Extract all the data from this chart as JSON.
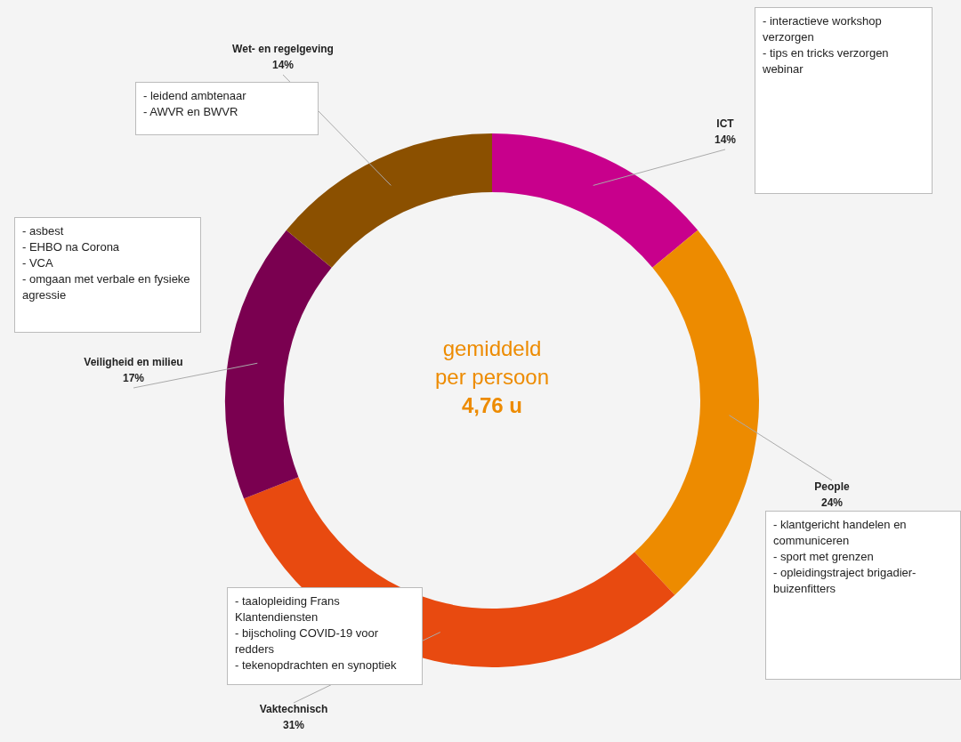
{
  "chart_data": {
    "type": "donut",
    "categories": [
      "ICT",
      "People",
      "Vaktechnisch",
      "Veiligheid en milieu",
      "Wet- en regelgeving"
    ],
    "values": [
      14,
      24,
      31,
      17,
      14
    ],
    "colors": [
      "#c8008c",
      "#ed8b00",
      "#e84a10",
      "#7a0050",
      "#8b5000"
    ],
    "value_labels": [
      "14%",
      "24%",
      "31%",
      "17%",
      "14%"
    ],
    "legend": false,
    "annotations": [
      "gemiddeld\nper persoon\n4,76 u",
      "- interactieve workshop verzorgen\n- tips en tricks verzorgen webinar",
      "- klantgericht handelen en communiceren\n- sport met grenzen\n- opleidingstraject brigadier-buizenfitters",
      "- taalopleiding Frans Klantendiensten\n- bijscholing COVID-19 voor redders\n- tekenopdrachten en synoptiek",
      "- asbest\n- EHBO na Corona\n- VCA\n- omgaan met verbale en fysieke agressie",
      "- leidend ambtenaar\n- AWVR en BWVR"
    ]
  }
}
